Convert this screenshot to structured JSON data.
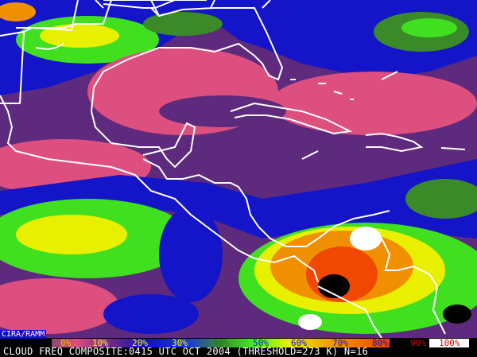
{
  "credit": "CIRA/RAMM",
  "caption": "CLOUD FREQ COMPOSITE:0415 UTC OCT 2004 (THRESHOLD=273 K) N=16",
  "colorbar": {
    "labels": [
      "0%",
      "10%",
      "20%",
      "30%",
      "40%",
      "50%",
      "60%",
      "70%",
      "80%",
      "90%",
      "100%"
    ],
    "colors": {
      "0": "#dd4f7f",
      "10": "#6a2a80",
      "20": "#1010c8",
      "30": "#1838e0",
      "40": "#3a8a2a",
      "50": "#40e020",
      "60": "#e8f000",
      "70": "#f0a000",
      "80": "#f05000",
      "90": "#000000",
      "100": "#ffffff"
    }
  },
  "map_colors": {
    "pink": "#dd4f7f",
    "purple": "#5e2a7e",
    "blue": "#1414c8",
    "darkgreen": "#3a8a2a",
    "green": "#40e020",
    "yellow": "#e8f000",
    "orange": "#f09000",
    "red": "#f04800",
    "coast": "#ffffff"
  }
}
